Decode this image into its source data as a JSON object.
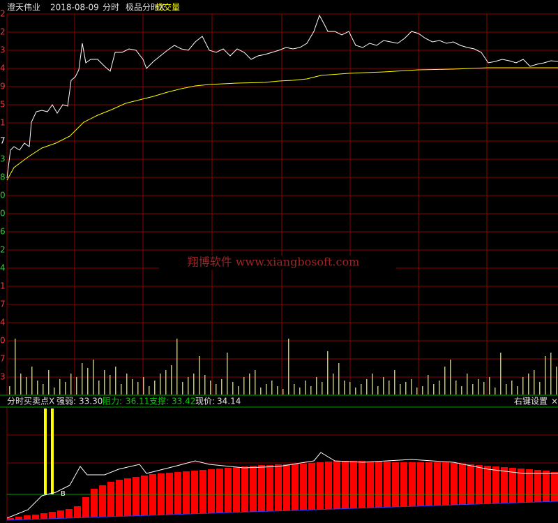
{
  "header": {
    "stock": "澄天伟业",
    "date": "2018-08-09",
    "mode": "分时",
    "indicator": "极品分时X",
    "volume_label": "成交量"
  },
  "price_panel": {
    "axis_labels": [
      "2",
      "2",
      "3",
      "4",
      "9",
      "5",
      "1",
      "7",
      "3",
      "8",
      "0",
      "0",
      "6",
      "2",
      "4"
    ],
    "watermark": "翔博软件 www.xiangbosoft.com",
    "xlim": [
      0,
      790
    ],
    "ylim": [
      0,
      364
    ],
    "price": {
      "color": "#ffffff",
      "x": [
        0,
        5,
        10,
        18,
        25,
        32,
        35,
        42,
        50,
        58,
        65,
        72,
        80,
        87,
        92,
        98,
        103,
        108,
        113,
        120,
        130,
        140,
        148,
        155,
        165,
        175,
        185,
        195,
        200,
        210,
        220,
        230,
        240,
        250,
        260,
        270,
        280,
        290,
        300,
        310,
        320,
        330,
        340,
        350,
        360,
        370,
        380,
        390,
        400,
        410,
        420,
        430,
        440,
        448,
        455,
        460,
        470,
        480,
        490,
        500,
        510,
        520,
        530,
        540,
        550,
        560,
        570,
        580,
        590,
        600,
        610,
        620,
        630,
        640,
        650,
        660,
        670,
        680,
        690,
        700,
        710,
        720,
        730,
        740,
        750,
        760,
        770,
        780,
        790
      ],
      "values": [
        129,
        169,
        174,
        169,
        179,
        174,
        209,
        224,
        226,
        224,
        234,
        222,
        234,
        232,
        269,
        274,
        284,
        322,
        294,
        299,
        299,
        289,
        282,
        309,
        309,
        314,
        312,
        299,
        286,
        296,
        304,
        312,
        319,
        314,
        312,
        324,
        332,
        312,
        309,
        314,
        304,
        314,
        309,
        299,
        304,
        306,
        309,
        312,
        316,
        314,
        316,
        322,
        339,
        362,
        349,
        339,
        339,
        334,
        339,
        319,
        316,
        322,
        319,
        326,
        324,
        322,
        329,
        339,
        336,
        329,
        324,
        326,
        322,
        324,
        319,
        316,
        314,
        309,
        294,
        296,
        299,
        297,
        294,
        299,
        289,
        292,
        294,
        297,
        296
      ]
    },
    "average": {
      "color": "#ffff00",
      "x": [
        0,
        10,
        30,
        50,
        70,
        90,
        100,
        110,
        130,
        150,
        170,
        190,
        210,
        230,
        250,
        270,
        290,
        330,
        370,
        390,
        410,
        430,
        450,
        490,
        540,
        590,
        640,
        690,
        790
      ],
      "values": [
        126,
        144,
        159,
        172,
        179,
        189,
        199,
        209,
        219,
        227,
        236,
        241,
        246,
        252,
        257,
        261,
        263,
        265,
        266,
        268,
        269,
        271,
        276,
        279,
        281,
        284,
        285,
        287,
        287
      ]
    }
  },
  "volume_panel": {
    "axis_labels": [
      "1",
      "7",
      "4",
      "0",
      "7",
      "3"
    ],
    "ylim": [
      0,
      180
    ],
    "color": "#c8c850",
    "values": [
      12,
      80,
      30,
      25,
      40,
      20,
      15,
      35,
      10,
      22,
      18,
      30,
      25,
      45,
      38,
      50,
      20,
      35,
      28,
      40,
      15,
      30,
      22,
      18,
      25,
      12,
      20,
      30,
      35,
      42,
      80,
      18,
      25,
      30,
      55,
      28,
      20,
      15,
      22,
      60,
      18,
      12,
      25,
      30,
      35,
      10,
      15,
      20,
      12,
      8,
      80,
      15,
      10,
      20,
      12,
      25,
      18,
      62,
      30,
      45,
      20,
      18,
      10,
      15,
      22,
      30,
      12,
      25,
      20,
      35,
      15,
      18,
      22,
      10,
      12,
      28,
      15,
      20,
      40,
      50,
      20,
      12,
      30,
      15,
      22,
      18,
      25,
      10,
      60,
      15,
      20,
      12,
      25,
      30,
      35,
      18,
      55,
      60,
      40
    ]
  },
  "indicator_panel": {
    "name": "分时买卖点X",
    "strength_label": "强弱:",
    "strength": "33.30",
    "resistance_label": "阻力:",
    "resistance": "36.11",
    "support_label": "支撑:",
    "support": "33.42",
    "price_label": "现价:",
    "price": "34.14",
    "settings": "右键设置",
    "close": "×",
    "signal": "B",
    "ylim": [
      0,
      166
    ],
    "bars": {
      "color": "#ff0000",
      "values": [
        7,
        9,
        11,
        12,
        14,
        16,
        18,
        20,
        24,
        37,
        49,
        54,
        59,
        62,
        64,
        66,
        68,
        70,
        71,
        72,
        73,
        74,
        75,
        76,
        77,
        78,
        79,
        80,
        81,
        82,
        83,
        83,
        84,
        84,
        85,
        85,
        86,
        87,
        88,
        89,
        89,
        89,
        89,
        88,
        88,
        88,
        87,
        87,
        87,
        87,
        87,
        87,
        87,
        86,
        85,
        84,
        83,
        82,
        81,
        80,
        79,
        78,
        77,
        76,
        75,
        73
      ]
    },
    "line": {
      "color": "#ffffff",
      "x": [
        0,
        30,
        50,
        70,
        90,
        105,
        115,
        140,
        160,
        190,
        200,
        240,
        270,
        290,
        340,
        390,
        440,
        450,
        470,
        510,
        580,
        640,
        690,
        740,
        790
      ],
      "values": [
        7,
        19,
        39,
        44,
        54,
        81,
        69,
        69,
        77,
        84,
        71,
        81,
        89,
        84,
        79,
        81,
        89,
        101,
        89,
        87,
        91,
        87,
        77,
        71,
        71
      ]
    }
  }
}
